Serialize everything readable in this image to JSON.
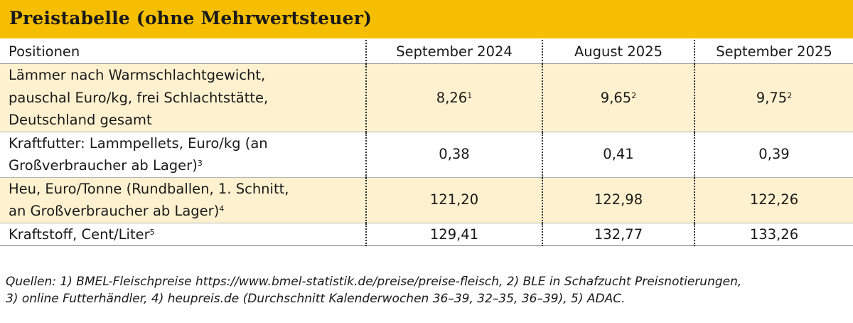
{
  "title": "Preistabelle (ohne Mehrwertsteuer)",
  "headers": [
    "Positionen",
    "September 2024",
    "August 2025",
    "September 2025"
  ],
  "rows": [
    {
      "label_lines": [
        "Lämmer nach Warmschlachtgewicht,",
        "pauschal Euro/kg, frei Schlachtstätte,",
        "Deutschland gesamt"
      ],
      "label_sup": "",
      "values": [
        "8,26",
        "9,65",
        "9,75"
      ],
      "value_sups": [
        "1",
        "2",
        "2"
      ],
      "shaded": true
    },
    {
      "label_lines": [
        "Kraftfutter: Lammpellets, Euro/kg (an",
        "Großverbraucher ab Lager)"
      ],
      "label_sup": "3",
      "values": [
        "0,38",
        "0,41",
        "0,39"
      ],
      "value_sups": [
        "",
        "",
        ""
      ],
      "shaded": false
    },
    {
      "label_lines": [
        "Heu, Euro/Tonne (Rundballen, 1. Schnitt,",
        "an Großverbraucher ab Lager)"
      ],
      "label_sup": "4",
      "values": [
        "121,20",
        "122,98",
        "122,26"
      ],
      "value_sups": [
        "",
        "",
        ""
      ],
      "shaded": true
    },
    {
      "label_lines": [
        "Kraftstoff, Cent/Liter"
      ],
      "label_sup": "5",
      "values": [
        "129,41",
        "132,77",
        "133,26"
      ],
      "value_sups": [
        "",
        "",
        ""
      ],
      "shaded": false
    }
  ],
  "footer_lines": [
    "Quellen: 1) BMEL-Fleischpreise https://www.bmel-statistik.de/preise/preise-fleisch, 2) BLE in Schafzucht Preisnotierungen,",
    "3) online Futterhändler, 4) heupreis.de (Durchschnitt Kalenderwochen 36–39, 32–35, 36–39), 5) ADAC."
  ],
  "colors": {
    "title_bar": "#f5bf00",
    "row_shade": "#fdf1cf"
  }
}
